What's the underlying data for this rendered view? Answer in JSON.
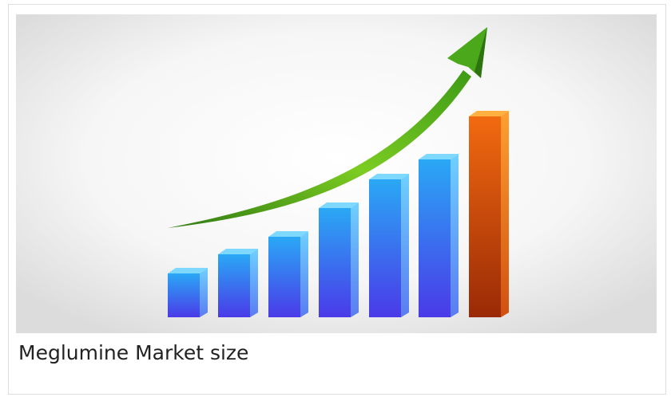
{
  "card": {
    "caption": "Meglumine Market size"
  }
}
